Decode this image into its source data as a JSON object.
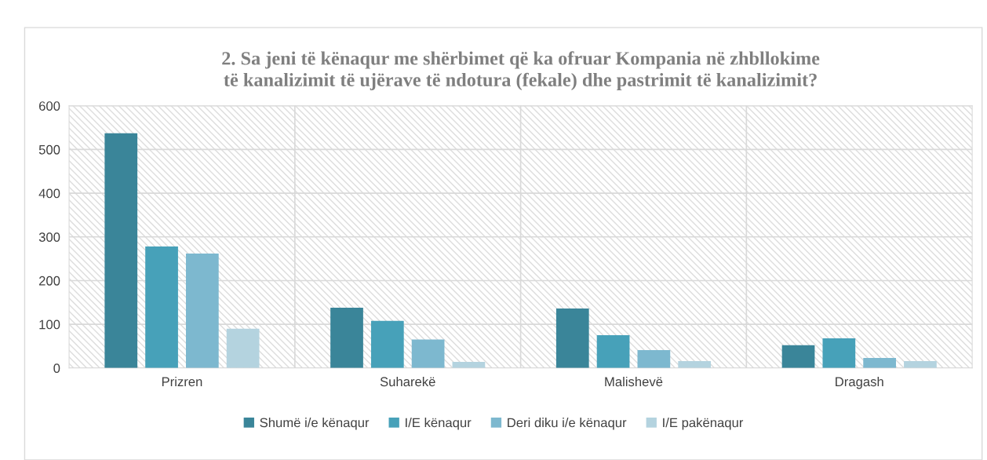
{
  "chart_data": {
    "type": "bar",
    "title": "2. Sa jeni të kënaqur me shërbimet që ka ofruar Kompania në zhbllokime\ntë kanalizimit të ujërave të ndotura (fekale) dhe pastrimit të kanalizimit?",
    "categories": [
      "Prizren",
      "Suharekë",
      "Malishevë",
      "Dragash"
    ],
    "series": [
      {
        "name": "Shumë i/e kënaqur",
        "color": "#3a8599",
        "values": [
          537,
          138,
          136,
          52
        ]
      },
      {
        "name": "I/E kënaqur",
        "color": "#47a1b9",
        "values": [
          278,
          108,
          75,
          68
        ]
      },
      {
        "name": "Deri diku i/e kënaqur",
        "color": "#7db8cf",
        "values": [
          262,
          65,
          41,
          23
        ]
      },
      {
        "name": "I/E pakënaqur",
        "color": "#b4d3df",
        "values": [
          90,
          14,
          16,
          16
        ]
      }
    ],
    "ylim": [
      0,
      600
    ],
    "yticks": [
      0,
      100,
      200,
      300,
      400,
      500,
      600
    ],
    "grid": "y",
    "legend": "bottom"
  }
}
